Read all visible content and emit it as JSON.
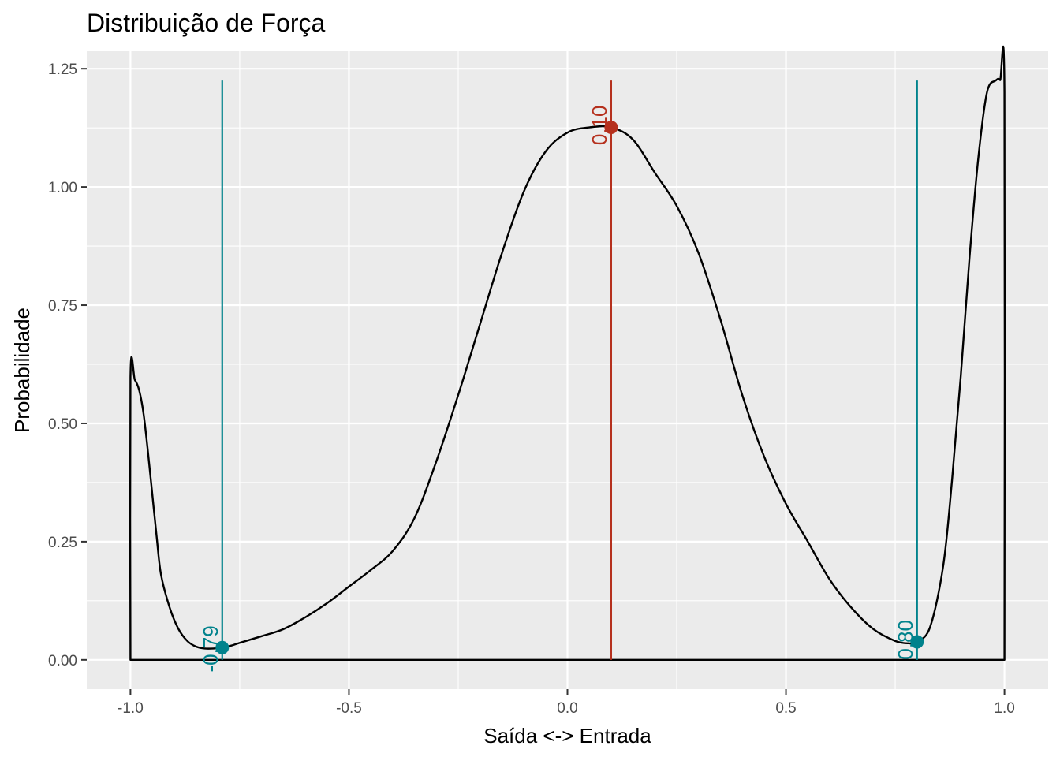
{
  "chart_data": {
    "type": "line",
    "title": "Distribuição de Força",
    "xlabel": "Saída <-> Entrada",
    "ylabel": "Probabilidade",
    "xlim": [
      -1.1,
      1.1
    ],
    "ylim": [
      -0.062,
      1.287
    ],
    "x_ticks": [
      -1.0,
      -0.5,
      0.0,
      0.5,
      1.0
    ],
    "x_tick_labels": [
      "-1.0",
      "-0.5",
      "0.0",
      "0.5",
      "1.0"
    ],
    "y_ticks": [
      0.0,
      0.25,
      0.5,
      0.75,
      1.0,
      1.25
    ],
    "y_tick_labels": [
      "0.00",
      "0.25",
      "0.50",
      "0.75",
      "1.00",
      "1.25"
    ],
    "grid": true,
    "density": {
      "x": [
        -1.0,
        -1.0,
        -0.99,
        -0.98,
        -0.97,
        -0.96,
        -0.95,
        -0.94,
        -0.93,
        -0.91,
        -0.89,
        -0.87,
        -0.85,
        -0.83,
        -0.81,
        -0.79,
        -0.77,
        -0.75,
        -0.7,
        -0.65,
        -0.6,
        -0.55,
        -0.5,
        -0.45,
        -0.4,
        -0.35,
        -0.3,
        -0.25,
        -0.2,
        -0.15,
        -0.1,
        -0.05,
        0.0,
        0.05,
        0.1,
        0.15,
        0.2,
        0.25,
        0.3,
        0.35,
        0.4,
        0.45,
        0.5,
        0.55,
        0.6,
        0.65,
        0.7,
        0.75,
        0.78,
        0.8,
        0.83,
        0.86,
        0.88,
        0.9,
        0.92,
        0.94,
        0.96,
        0.98,
        0.99,
        1.0,
        1.0
      ],
      "y": [
        0.0,
        0.597,
        0.592,
        0.57,
        0.52,
        0.44,
        0.35,
        0.26,
        0.18,
        0.11,
        0.065,
        0.04,
        0.028,
        0.024,
        0.024,
        0.026,
        0.03,
        0.036,
        0.05,
        0.065,
        0.09,
        0.12,
        0.155,
        0.19,
        0.23,
        0.3,
        0.42,
        0.56,
        0.71,
        0.86,
        0.99,
        1.075,
        1.115,
        1.126,
        1.126,
        1.1,
        1.03,
        0.96,
        0.86,
        0.72,
        0.56,
        0.43,
        0.33,
        0.25,
        0.17,
        0.11,
        0.065,
        0.04,
        0.035,
        0.038,
        0.07,
        0.2,
        0.38,
        0.6,
        0.85,
        1.06,
        1.2,
        1.225,
        1.226,
        1.2,
        0.0
      ],
      "color": "#000000"
    },
    "markers": [
      {
        "x": -0.79,
        "y": 0.026,
        "label": "-0,79",
        "color": "#00828c"
      },
      {
        "x": 0.1,
        "y": 1.126,
        "label": "0,10",
        "color": "#b5301d"
      },
      {
        "x": 0.8,
        "y": 0.038,
        "label": "0,80",
        "color": "#00828c"
      }
    ],
    "marker_line_top": 1.225
  }
}
